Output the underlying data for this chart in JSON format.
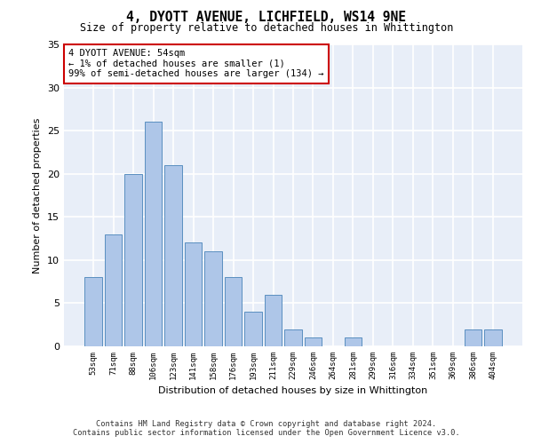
{
  "title": "4, DYOTT AVENUE, LICHFIELD, WS14 9NE",
  "subtitle": "Size of property relative to detached houses in Whittington",
  "xlabel": "Distribution of detached houses by size in Whittington",
  "ylabel": "Number of detached properties",
  "categories": [
    "53sqm",
    "71sqm",
    "88sqm",
    "106sqm",
    "123sqm",
    "141sqm",
    "158sqm",
    "176sqm",
    "193sqm",
    "211sqm",
    "229sqm",
    "246sqm",
    "264sqm",
    "281sqm",
    "299sqm",
    "316sqm",
    "334sqm",
    "351sqm",
    "369sqm",
    "386sqm",
    "404sqm"
  ],
  "values": [
    8,
    13,
    20,
    26,
    21,
    12,
    11,
    8,
    4,
    6,
    2,
    1,
    0,
    1,
    0,
    0,
    0,
    0,
    0,
    2,
    2
  ],
  "bar_color": "#aec6e8",
  "bar_edge_color": "#5a8fc0",
  "annotation_box_text": "4 DYOTT AVENUE: 54sqm\n← 1% of detached houses are smaller (1)\n99% of semi-detached houses are larger (134) →",
  "annotation_box_color": "#ffffff",
  "annotation_box_edge_color": "#cc0000",
  "ylim": [
    0,
    35
  ],
  "yticks": [
    0,
    5,
    10,
    15,
    20,
    25,
    30,
    35
  ],
  "background_color": "#e8eef8",
  "grid_color": "#ffffff",
  "footer_line1": "Contains HM Land Registry data © Crown copyright and database right 2024.",
  "footer_line2": "Contains public sector information licensed under the Open Government Licence v3.0."
}
